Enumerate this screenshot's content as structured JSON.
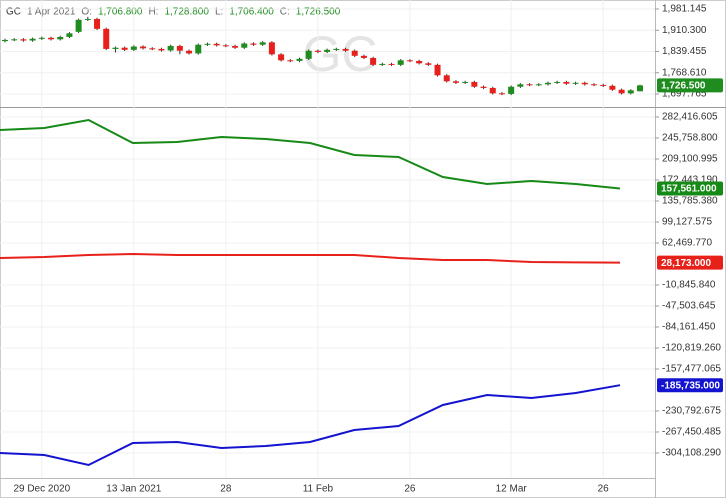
{
  "header": {
    "symbol": "GC",
    "date": "1 Apr 2021",
    "items": [
      {
        "key": "O:",
        "value": "1,706.800"
      },
      {
        "key": "H:",
        "value": "1,728.800"
      },
      {
        "key": "L:",
        "value": "1,706.400"
      },
      {
        "key": "C:",
        "value": "1,726.500"
      }
    ]
  },
  "chart_data": [
    {
      "type": "candlestick",
      "categories": [
        null,
        null,
        null,
        null,
        "29 Dec 2020",
        null,
        null,
        null,
        null,
        null,
        null,
        null,
        null,
        null,
        "13 Jan 2021",
        null,
        null,
        null,
        null,
        null,
        null,
        null,
        null,
        null,
        "28",
        null,
        null,
        null,
        null,
        null,
        null,
        null,
        null,
        null,
        "11 Feb",
        null,
        null,
        null,
        null,
        null,
        null,
        null,
        null,
        null,
        "26",
        null,
        null,
        null,
        null,
        null,
        null,
        null,
        null,
        null,
        null,
        "12 Mar",
        null,
        null,
        null,
        null,
        null,
        null,
        null,
        null,
        null,
        "26",
        null,
        null,
        null,
        null
      ],
      "open": [
        1874,
        1878,
        1880,
        1876,
        1882,
        1885,
        1880,
        1888,
        1905,
        1945,
        1948,
        1915,
        1848,
        1852,
        1845,
        1856,
        1850,
        1848,
        1843,
        1858,
        1842,
        1833,
        1862,
        1865,
        1860,
        1858,
        1852,
        1866,
        1862,
        1870,
        1830,
        1810,
        1808,
        1815,
        1842,
        1838,
        1845,
        1848,
        1842,
        1825,
        1818,
        1795,
        1798,
        1795,
        1810,
        1808,
        1800,
        1795,
        1760,
        1740,
        1735,
        1738,
        1722,
        1718,
        1700,
        1698,
        1722,
        1730,
        1728,
        1730,
        1735,
        1738,
        1732,
        1735,
        1730,
        1728,
        1725,
        1712,
        1700,
        1706.8
      ],
      "high": [
        1882,
        1884,
        1884,
        1886,
        1889,
        1889,
        1892,
        1904,
        1949,
        1955,
        1952,
        1919,
        1856,
        1856,
        1860,
        1860,
        1854,
        1852,
        1862,
        1862,
        1846,
        1866,
        1869,
        1869,
        1864,
        1862,
        1870,
        1870,
        1874,
        1874,
        1834,
        1814,
        1819,
        1846,
        1846,
        1849,
        1852,
        1852,
        1846,
        1829,
        1822,
        1802,
        1802,
        1814,
        1814,
        1812,
        1804,
        1799,
        1764,
        1744,
        1742,
        1742,
        1726,
        1722,
        1704,
        1726,
        1734,
        1734,
        1734,
        1739,
        1742,
        1742,
        1739,
        1739,
        1734,
        1732,
        1729,
        1716,
        1714,
        1728.8
      ],
      "low": [
        1870,
        1874,
        1872,
        1872,
        1878,
        1876,
        1876,
        1884,
        1901,
        1941,
        1911,
        1844,
        1836,
        1841,
        1841,
        1846,
        1844,
        1839,
        1839,
        1830,
        1829,
        1829,
        1858,
        1856,
        1854,
        1848,
        1848,
        1858,
        1858,
        1826,
        1806,
        1804,
        1804,
        1811,
        1834,
        1834,
        1841,
        1838,
        1821,
        1814,
        1791,
        1791,
        1791,
        1791,
        1804,
        1796,
        1791,
        1756,
        1736,
        1731,
        1731,
        1718,
        1714,
        1696,
        1694,
        1694,
        1718,
        1724,
        1724,
        1726,
        1731,
        1728,
        1728,
        1726,
        1724,
        1721,
        1708,
        1696,
        1696,
        1706.4
      ],
      "close": [
        1878,
        1880,
        1876,
        1882,
        1885,
        1880,
        1888,
        1900,
        1945,
        1948,
        1915,
        1848,
        1852,
        1845,
        1856,
        1850,
        1848,
        1843,
        1858,
        1842,
        1833,
        1862,
        1865,
        1860,
        1858,
        1852,
        1866,
        1862,
        1870,
        1830,
        1810,
        1808,
        1815,
        1842,
        1838,
        1845,
        1848,
        1842,
        1825,
        1818,
        1795,
        1798,
        1795,
        1810,
        1808,
        1800,
        1795,
        1760,
        1740,
        1735,
        1738,
        1722,
        1718,
        1700,
        1698,
        1722,
        1730,
        1728,
        1730,
        1735,
        1738,
        1732,
        1735,
        1730,
        1728,
        1725,
        1712,
        1700,
        1710,
        1726.5
      ],
      "up_color": "#1e8c1e",
      "down_color": "#e8201c",
      "last_label": "1,726.500",
      "ylim": [
        1654.4,
        2011.1
      ],
      "yticks": [
        {
          "value": 1981.145,
          "label": "1,981.145"
        },
        {
          "value": 1910.3,
          "label": "1,910.300"
        },
        {
          "value": 1839.455,
          "label": "1,839.455"
        },
        {
          "value": 1768.61,
          "label": "1,768.610"
        },
        {
          "value": 1697.765,
          "label": "1,697.765"
        }
      ],
      "grid": true
    },
    {
      "type": "line",
      "series": [
        {
          "color": "#168a16",
          "values": [
            259723,
            263215,
            277180,
            237031,
            238777,
            247505,
            244014,
            237031,
            216084,
            212593,
            177680,
            165461,
            170698,
            165461,
            157561
          ],
          "last_label": "157,561.000"
        },
        {
          "color": "#e8201a",
          "values": [
            36286,
            38032,
            41523,
            43269,
            41523,
            41523,
            41523,
            41523,
            41523,
            36286,
            32795,
            32795,
            29304,
            28700,
            28173
          ],
          "last_label": "28,173.000"
        },
        {
          "color": "#1414d0",
          "values": [
            -304106,
            -307597,
            -325053,
            -286650,
            -284904,
            -295378,
            -291887,
            -284904,
            -263957,
            -256974,
            -220317,
            -202861,
            -208098,
            -199370,
            -185735
          ],
          "last_label": "-185,735.000"
        }
      ],
      "ylim": [
        -347748,
        298127
      ],
      "yticks": [
        {
          "value": 282416.605,
          "label": "282,416.605"
        },
        {
          "value": 245758.8,
          "label": "245,758.800"
        },
        {
          "value": 209100.995,
          "label": "209,100.995"
        },
        {
          "value": 172443.19,
          "label": "172,443.190"
        },
        {
          "value": 135785.385,
          "label": "135,785.380"
        },
        {
          "value": 99127.575,
          "label": "99,127.575"
        },
        {
          "value": 62469.77,
          "label": "62,469.770"
        },
        {
          "value": -10845.84,
          "label": "-10,845.840"
        },
        {
          "value": -47503.645,
          "label": "-47,503.645"
        },
        {
          "value": -84161.45,
          "label": "-84,161.450"
        },
        {
          "value": -120819.26,
          "label": "-120,819.260"
        },
        {
          "value": -157477.065,
          "label": "-157,477.065"
        },
        {
          "value": -230792.675,
          "label": "-230,792.675"
        },
        {
          "value": -267450.485,
          "label": "-267,450.485"
        },
        {
          "value": -304108.29,
          "label": "-304,108.290"
        }
      ],
      "grid": true
    }
  ]
}
